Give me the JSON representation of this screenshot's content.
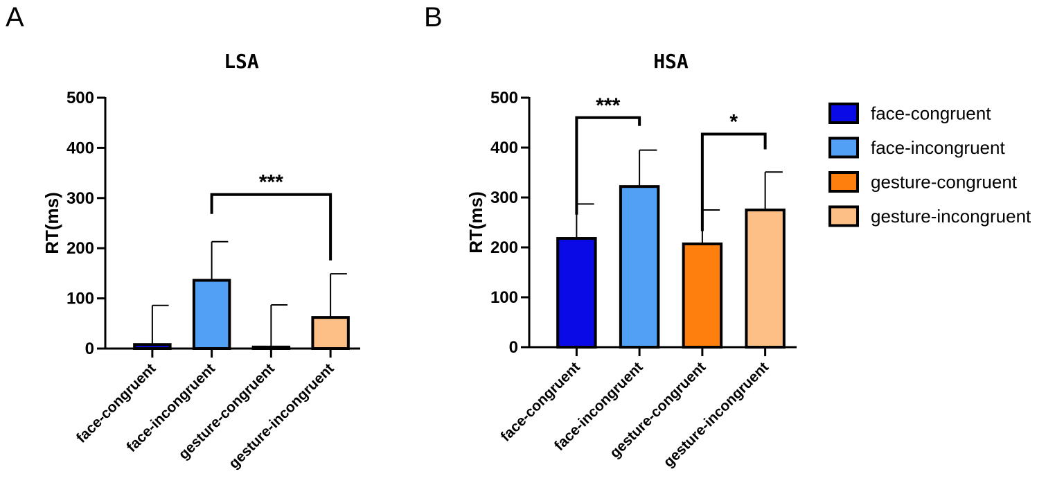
{
  "panels": {
    "a": "A",
    "b": "B"
  },
  "chart_data": [
    {
      "type": "bar",
      "title": "LSA",
      "xlabel": "",
      "ylabel": "RT(ms)",
      "ylim": [
        0,
        500
      ],
      "yticks": [
        0,
        100,
        200,
        300,
        400,
        500
      ],
      "categories": [
        "face-congruent",
        "face-incongruent",
        "gesture-congruent",
        "gesture-incongruent"
      ],
      "values": [
        8,
        136,
        3,
        62
      ],
      "errors": [
        78,
        77,
        84,
        87
      ],
      "colors": [
        "#0a0ae6",
        "#52a0f5",
        "#ff7f0e",
        "#fdbf85"
      ],
      "significance": [
        {
          "from": 1,
          "to": 3,
          "label": "***",
          "y": 307,
          "left_drop": 28,
          "right_drop": 95
        }
      ]
    },
    {
      "type": "bar",
      "title": "HSA",
      "xlabel": "",
      "ylabel": "RT(ms)",
      "ylim": [
        0,
        500
      ],
      "yticks": [
        0,
        100,
        200,
        300,
        400,
        500
      ],
      "categories": [
        "face-congruent",
        "face-incongruent",
        "gesture-congruent",
        "gesture-incongruent"
      ],
      "values": [
        218,
        322,
        207,
        275
      ],
      "errors": [
        69,
        73,
        68,
        76
      ],
      "colors": [
        "#0a0ae6",
        "#52a0f5",
        "#ff7f0e",
        "#fdbf85"
      ],
      "significance": [
        {
          "from": 0,
          "to": 1,
          "label": "***",
          "y": 460,
          "left_drop": 140,
          "right_drop": 12
        },
        {
          "from": 2,
          "to": 3,
          "label": "*",
          "y": 427,
          "left_drop": 140,
          "right_drop": 22
        }
      ]
    }
  ],
  "legend": {
    "position": "right",
    "items": [
      {
        "label": "face-congruent",
        "color": "#0a0ae6"
      },
      {
        "label": "face-incongruent",
        "color": "#52a0f5"
      },
      {
        "label": "gesture-congruent",
        "color": "#ff7f0e"
      },
      {
        "label": "gesture-incongruent",
        "color": "#fdbf85"
      }
    ]
  }
}
